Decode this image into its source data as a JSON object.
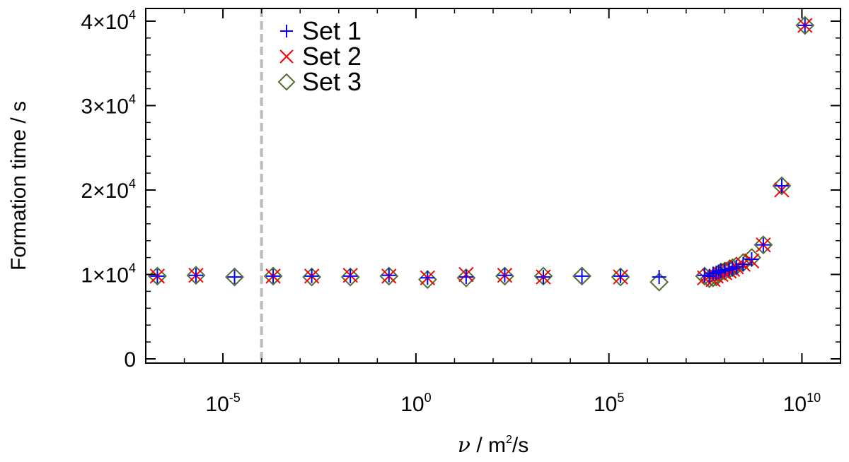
{
  "chart_data": {
    "type": "scatter",
    "xlabel": {
      "symbol": "ν",
      "text": " / m",
      "sup": "2",
      "suffix": "/s"
    },
    "ylabel": "Formation time / s",
    "xscale": "log",
    "xlim": [
      1e-07,
      100000000000.0
    ],
    "ylim": [
      -500,
      41500
    ],
    "x_ticks": [
      {
        "value": 1e-05,
        "base": "10",
        "exp": "-5"
      },
      {
        "value": 1,
        "base": "10",
        "exp": "0"
      },
      {
        "value": 100000.0,
        "base": "10",
        "exp": "5"
      },
      {
        "value": 10000000000.0,
        "base": "10",
        "exp": "10"
      }
    ],
    "y_ticks": [
      {
        "value": 0,
        "mant": "0",
        "exp": ""
      },
      {
        "value": 10000,
        "mant": "1×10",
        "exp": "4"
      },
      {
        "value": 20000,
        "mant": "2×10",
        "exp": "4"
      },
      {
        "value": 30000,
        "mant": "3×10",
        "exp": "4"
      },
      {
        "value": 40000,
        "mant": "4×10",
        "exp": "4"
      }
    ],
    "reference_line": {
      "x": 0.0001,
      "style": "dashed",
      "color": "#bbbbbb"
    },
    "legend": {
      "position": "top-left"
    },
    "series": [
      {
        "name": "Set 1",
        "marker": "plus",
        "color": "#0000ff",
        "x": [
          2e-07,
          2e-06,
          2e-05,
          0.0002,
          0.002,
          0.02,
          0.2,
          2,
          20,
          200,
          2000,
          20000,
          200000.0,
          2000000.0,
          30000000.0,
          40000000.0,
          50000000.0,
          60000000.0,
          70000000.0,
          80000000.0,
          100000000.0,
          130000000.0,
          160000000.0,
          200000000.0,
          300000000.0,
          500000000.0,
          1000000000.0,
          3000000000.0,
          12000000000.0
        ],
        "y": [
          9800,
          9900,
          9700,
          9800,
          9800,
          9800,
          9900,
          9600,
          9700,
          9900,
          9700,
          9800,
          9800,
          9700,
          9900,
          9800,
          10100,
          10200,
          10300,
          10400,
          10500,
          10600,
          10700,
          10900,
          11200,
          11800,
          13500,
          20500,
          39500
        ]
      },
      {
        "name": "Set 2",
        "marker": "x",
        "color": "#ff0000",
        "x": [
          2e-07,
          2e-06,
          0.0002,
          0.002,
          0.02,
          0.2,
          2,
          20,
          200,
          2000,
          200000.0,
          30000000.0,
          40000000.0,
          50000000.0,
          60000000.0,
          80000000.0,
          100000000.0,
          130000000.0,
          160000000.0,
          200000000.0,
          300000000.0,
          500000000.0,
          1000000000.0,
          3000000000.0,
          12000000000.0
        ],
        "y": [
          9800,
          9900,
          9800,
          9800,
          9900,
          9800,
          9600,
          10000,
          9900,
          9700,
          9700,
          9600,
          9800,
          9400,
          9800,
          10000,
          10200,
          10400,
          10600,
          10900,
          11200,
          11600,
          13500,
          20000,
          39500
        ]
      },
      {
        "name": "Set 3",
        "marker": "diamond",
        "color": "#556b2f",
        "x": [
          2e-07,
          2e-06,
          2e-05,
          0.0002,
          0.002,
          0.02,
          0.2,
          2,
          20,
          200,
          2000,
          20000,
          200000.0,
          2000000.0,
          30000000.0,
          40000000.0,
          50000000.0,
          60000000.0,
          70000000.0,
          80000000.0,
          100000000.0,
          130000000.0,
          160000000.0,
          200000000.0,
          300000000.0,
          500000000.0,
          1000000000.0,
          3000000000.0,
          12000000000.0
        ],
        "y": [
          9800,
          9900,
          9700,
          9800,
          9700,
          9700,
          9800,
          9400,
          9600,
          9800,
          9800,
          9800,
          9700,
          9100,
          9800,
          9500,
          9600,
          9700,
          10100,
          10300,
          10400,
          10600,
          10800,
          11000,
          11400,
          12000,
          13500,
          20500,
          39500
        ]
      }
    ]
  }
}
